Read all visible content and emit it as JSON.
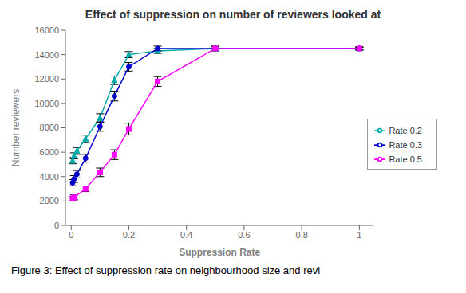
{
  "chart_data": {
    "type": "line",
    "title": "Effect of suppression on number of reviewers looked at",
    "xlabel": "Suppression Rate",
    "ylabel": "Number reviewers",
    "caption": "Figure 3: Effect of suppression rate on neighbourhood size and revi",
    "xlim": [
      -0.02,
      1.05
    ],
    "ylim": [
      0,
      16000
    ],
    "xticks": [
      0,
      0.2,
      0.4,
      0.6,
      0.8,
      1
    ],
    "yticks": [
      0,
      2000,
      4000,
      6000,
      8000,
      10000,
      12000,
      14000,
      16000
    ],
    "grid": false,
    "legend": "lower right",
    "series": [
      {
        "name": "Rate 0.2",
        "color": "#00AAAA",
        "marker": "triangle",
        "x": [
          0.005,
          0.01,
          0.02,
          0.05,
          0.1,
          0.15,
          0.2,
          0.3,
          0.5,
          1.0
        ],
        "values": [
          5300,
          5700,
          6100,
          7100,
          8800,
          11900,
          14000,
          14300,
          14500,
          14500
        ],
        "errors": [
          250,
          250,
          280,
          300,
          350,
          350,
          250,
          200,
          150,
          100
        ]
      },
      {
        "name": "Rate 0.3",
        "color": "#0000CC",
        "marker": "circle",
        "x": [
          0.005,
          0.01,
          0.02,
          0.05,
          0.1,
          0.15,
          0.2,
          0.3,
          0.5,
          1.0
        ],
        "values": [
          3500,
          3800,
          4200,
          5500,
          8100,
          10600,
          13000,
          14500,
          14500,
          14500
        ],
        "errors": [
          250,
          280,
          300,
          320,
          380,
          400,
          350,
          200,
          150,
          100
        ]
      },
      {
        "name": "Rate 0.5",
        "color": "#FF00FF",
        "marker": "square",
        "x": [
          0.005,
          0.01,
          0.05,
          0.1,
          0.15,
          0.2,
          0.3,
          0.5,
          1.0
        ],
        "values": [
          2200,
          2300,
          3000,
          4350,
          5800,
          7900,
          11800,
          14500,
          14500
        ],
        "errors": [
          180,
          200,
          230,
          350,
          400,
          480,
          400,
          200,
          150
        ]
      }
    ]
  }
}
